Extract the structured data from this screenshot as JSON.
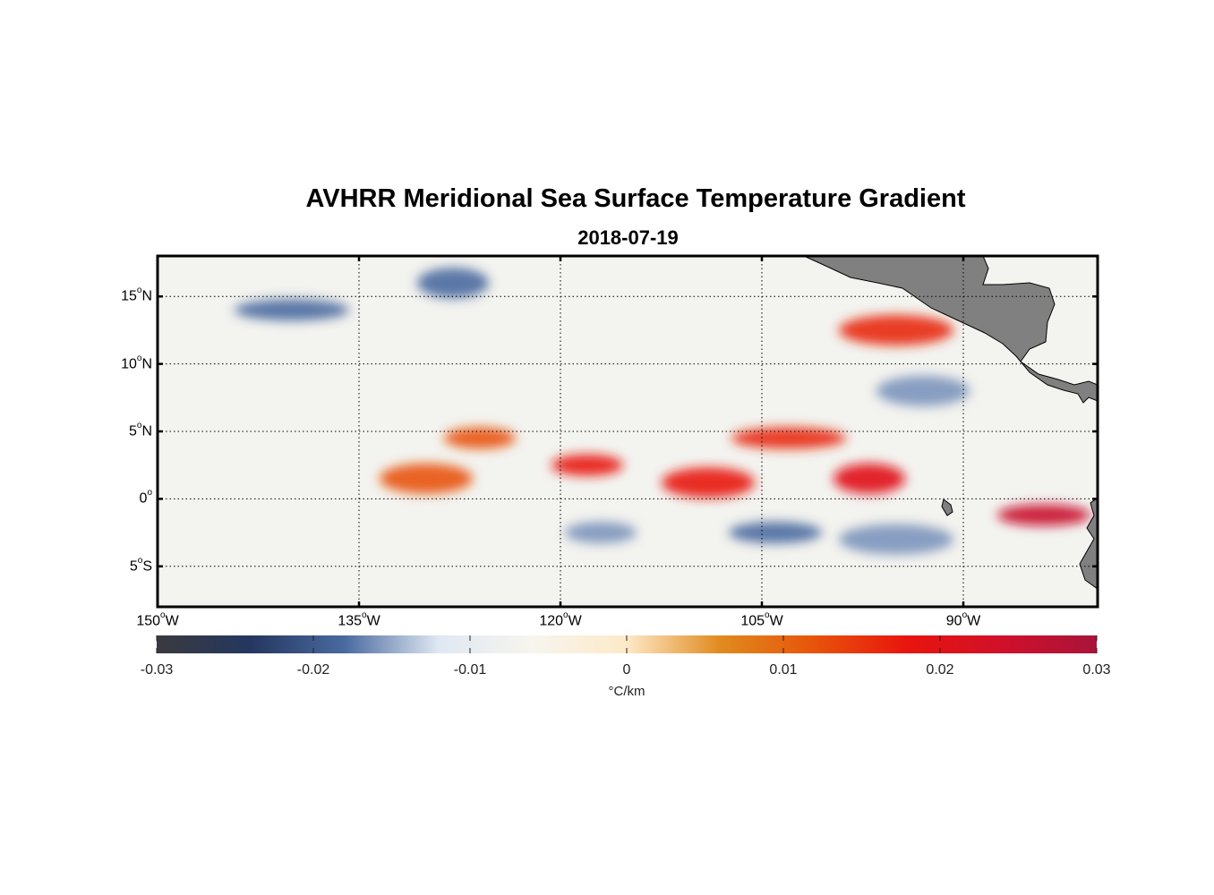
{
  "title": "AVHRR Meridional Sea Surface Temperature Gradient",
  "subtitle": "2018-07-19",
  "chart_data": {
    "type": "heatmap",
    "variable": "meridional SST gradient",
    "units": "°C/km",
    "colorbar": {
      "range": [
        -0.03,
        0.03
      ],
      "ticks": [
        "-0.03",
        "-0.02",
        "-0.01",
        "0",
        "0.01",
        "0.02",
        "0.03"
      ],
      "label": "°C/km",
      "colors": [
        "#3a3a3e",
        "#243760",
        "#4a6aa0",
        "#dfe8f2",
        "#f7f5ee",
        "#fde9c8",
        "#e08a1e",
        "#e8530a",
        "#e8140e",
        "#d0102a",
        "#a8143a"
      ]
    },
    "xaxis": {
      "range_lon": [
        -150,
        -80
      ],
      "ticks": [
        {
          "value": -150,
          "deg": "150",
          "hemi": "W"
        },
        {
          "value": -135,
          "deg": "135",
          "hemi": "W"
        },
        {
          "value": -120,
          "deg": "120",
          "hemi": "W"
        },
        {
          "value": -105,
          "deg": "105",
          "hemi": "W"
        },
        {
          "value": -90,
          "deg": "90",
          "hemi": "W"
        }
      ]
    },
    "yaxis": {
      "range_lat": [
        -8,
        18
      ],
      "ticks": [
        {
          "value": 15,
          "deg": "15",
          "hemi": "N"
        },
        {
          "value": 10,
          "deg": "10",
          "hemi": "N"
        },
        {
          "value": 5,
          "deg": "5",
          "hemi": "N"
        },
        {
          "value": 0,
          "deg": "0",
          "hemi": ""
        },
        {
          "value": -5,
          "deg": "5",
          "hemi": "S"
        }
      ]
    },
    "features": [
      {
        "lon": -118,
        "lat": 2.5,
        "value": 0.018
      },
      {
        "lon": -109,
        "lat": 1.2,
        "value": 0.018
      },
      {
        "lon": -103,
        "lat": 4.5,
        "value": 0.016
      },
      {
        "lon": -97,
        "lat": 1.5,
        "value": 0.02
      },
      {
        "lon": -84,
        "lat": -1.2,
        "value": 0.025
      },
      {
        "lon": -95,
        "lat": 12.5,
        "value": 0.016
      },
      {
        "lon": -126,
        "lat": 4.5,
        "value": 0.012
      },
      {
        "lon": -130,
        "lat": 1.5,
        "value": 0.012
      },
      {
        "lon": -140,
        "lat": 14,
        "value": -0.018
      },
      {
        "lon": -128,
        "lat": 16,
        "value": -0.018
      },
      {
        "lon": -104,
        "lat": -2.5,
        "value": -0.018
      },
      {
        "lon": -95,
        "lat": -3,
        "value": -0.016
      },
      {
        "lon": -117,
        "lat": -2.5,
        "value": -0.016
      },
      {
        "lon": -93,
        "lat": 8,
        "value": -0.016
      }
    ],
    "land_color": "#808080"
  }
}
